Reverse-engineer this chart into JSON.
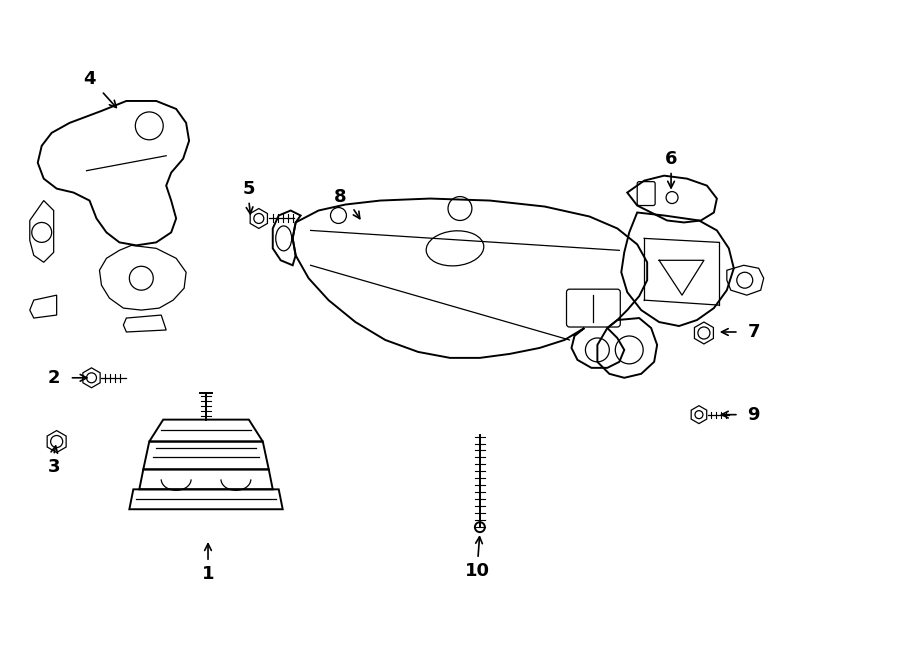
{
  "background_color": "#ffffff",
  "line_color": "#000000",
  "figsize": [
    9.0,
    6.61
  ],
  "dpi": 100,
  "lw_main": 1.4,
  "lw_thin": 0.9,
  "label_fontsize": 13,
  "labels": [
    [
      1,
      207,
      575,
      207,
      563,
      207,
      540
    ],
    [
      2,
      52,
      378,
      68,
      378,
      90,
      378
    ],
    [
      3,
      52,
      468,
      52,
      456,
      55,
      442
    ],
    [
      4,
      88,
      78,
      100,
      90,
      118,
      110
    ],
    [
      5,
      248,
      188,
      248,
      200,
      250,
      218
    ],
    [
      6,
      672,
      158,
      672,
      170,
      672,
      192
    ],
    [
      7,
      755,
      332,
      740,
      332,
      718,
      332
    ],
    [
      8,
      340,
      196,
      352,
      207,
      362,
      222
    ],
    [
      9,
      755,
      415,
      740,
      415,
      718,
      415
    ],
    [
      10,
      478,
      572,
      478,
      560,
      480,
      533
    ]
  ]
}
